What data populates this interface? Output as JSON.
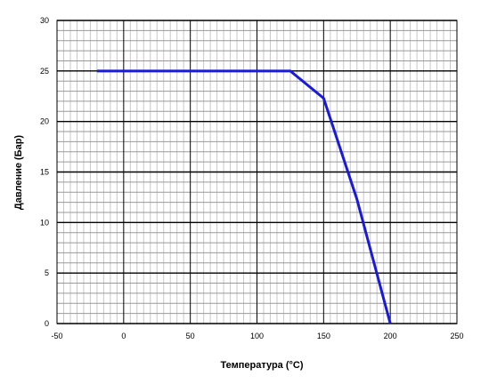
{
  "chart_data": {
    "type": "line",
    "title": "",
    "xlabel": "Температура (°C)",
    "ylabel": "Давление  (Бар)",
    "xlim": [
      -50,
      250
    ],
    "ylim": [
      0,
      30
    ],
    "x_ticks": [
      -50,
      0,
      50,
      100,
      150,
      200,
      250
    ],
    "y_ticks": [
      0,
      5,
      10,
      15,
      20,
      25,
      30
    ],
    "x_minor_step": 5,
    "y_minor_step": 1,
    "grid": true,
    "series": [
      {
        "color": "#1a1adc",
        "points": [
          {
            "x": -20,
            "y": 25
          },
          {
            "x": 125,
            "y": 25
          },
          {
            "x": 150,
            "y": 22.3
          },
          {
            "x": 175,
            "y": 12.3
          },
          {
            "x": 200,
            "y": 0
          }
        ]
      }
    ]
  }
}
